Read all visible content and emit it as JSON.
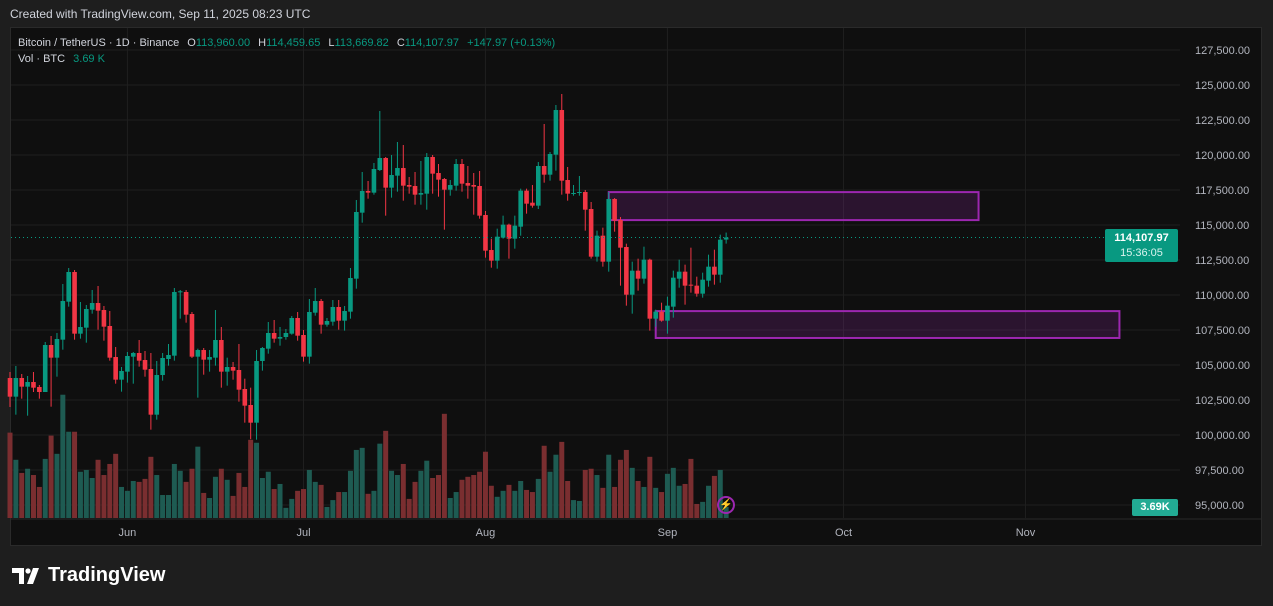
{
  "top_caption": "Created with TradingView.com, Sep 11, 2025 08:23 UTC",
  "legend": {
    "symbol": "Bitcoin / TetherUS · 1D · Binance",
    "o_label": "O",
    "o": "113,960.00",
    "h_label": "H",
    "h": "114,459.65",
    "l_label": "L",
    "l": "113,669.82",
    "c_label": "C",
    "c": "114,107.97",
    "change": "+147.97 (+0.13%)",
    "vol_label": "Vol · BTC",
    "vol": "3.69 K"
  },
  "last_price": {
    "price": "114,107.97",
    "countdown": "15:36:05",
    "value": 114107.97
  },
  "volume_label": "3.69K",
  "logo_text": "TradingView",
  "colors": {
    "up": "#089981",
    "down": "#f23645",
    "vol_up": "#1e5b52",
    "vol_down": "#7a2e30",
    "zone": "#9c27b0",
    "background": "#0f0f0f"
  },
  "icons": {
    "alert": "lightning-bolt-icon",
    "logo": "tradingview-logo-icon"
  },
  "chart_data": {
    "type": "candlestick",
    "title": "Bitcoin / TetherUS · 1D · Binance",
    "interval": "1D",
    "ylim": [
      95000,
      128000
    ],
    "y_ticks": [
      {
        "value": 127500,
        "label": "127,500.00"
      },
      {
        "value": 125000,
        "label": "125,000.00"
      },
      {
        "value": 122500,
        "label": "122,500.00"
      },
      {
        "value": 120000,
        "label": "120,000.00"
      },
      {
        "value": 117500,
        "label": "117,500.00"
      },
      {
        "value": 115000,
        "label": "115,000.00"
      },
      {
        "value": 112500,
        "label": "112,500.00"
      },
      {
        "value": 110000,
        "label": "110,000.00"
      },
      {
        "value": 107500,
        "label": "107,500.00"
      },
      {
        "value": 105000,
        "label": "105,000.00"
      },
      {
        "value": 102500,
        "label": "102,500.00"
      },
      {
        "value": 100000,
        "label": "100,000.00"
      },
      {
        "value": 97500,
        "label": "97,500.00"
      },
      {
        "value": 95000,
        "label": "95,000.00"
      }
    ],
    "x_ticks": [
      {
        "date": "2025-06-01",
        "label": "Jun"
      },
      {
        "date": "2025-07-01",
        "label": "Jul"
      },
      {
        "date": "2025-08-01",
        "label": "Aug"
      },
      {
        "date": "2025-09-01",
        "label": "Sep"
      },
      {
        "date": "2025-10-01",
        "label": "Oct"
      },
      {
        "date": "2025-11-01",
        "label": "Nov"
      }
    ],
    "grid": true,
    "columns": [
      "date",
      "open",
      "high",
      "low",
      "close",
      "volume_k_btc"
    ],
    "candles": [
      [
        "2025-05-12",
        104071,
        104500,
        102000,
        102738,
        28.6
      ],
      [
        "2025-05-13",
        102738,
        104928,
        101452,
        104071,
        19.5
      ],
      [
        "2025-05-14",
        104071,
        104357,
        102595,
        103452,
        15.1
      ],
      [
        "2025-05-15",
        103452,
        104214,
        101380,
        103785,
        16.5
      ],
      [
        "2025-05-16",
        103785,
        104500,
        103071,
        103380,
        14.4
      ],
      [
        "2025-05-17",
        103428,
        103571,
        102595,
        103071,
        10.4
      ],
      [
        "2025-05-18",
        103071,
        106643,
        103071,
        106428,
        19.8
      ],
      [
        "2025-05-19",
        106428,
        107071,
        102023,
        105524,
        27.6
      ],
      [
        "2025-05-20",
        105524,
        107285,
        104166,
        106857,
        21.5
      ],
      [
        "2025-05-21",
        106810,
        110785,
        106095,
        109571,
        41.3
      ],
      [
        "2025-05-22",
        109524,
        111928,
        109166,
        111643,
        28.9
      ],
      [
        "2025-05-23",
        111643,
        111785,
        106810,
        107238,
        28.9
      ],
      [
        "2025-05-24",
        107238,
        109500,
        106881,
        107714,
        15.5
      ],
      [
        "2025-05-25",
        107666,
        109285,
        106595,
        109000,
        16.1
      ],
      [
        "2025-05-26",
        108952,
        110357,
        108666,
        109428,
        13.4
      ],
      [
        "2025-05-27",
        109428,
        110643,
        107523,
        108881,
        19.5
      ],
      [
        "2025-05-28",
        108928,
        109214,
        106738,
        107738,
        14.4
      ],
      [
        "2025-05-29",
        107786,
        108857,
        105309,
        105524,
        18.1
      ],
      [
        "2025-05-30",
        105571,
        106285,
        103666,
        103952,
        21.5
      ],
      [
        "2025-05-31",
        103952,
        104857,
        103095,
        104571,
        10.4
      ],
      [
        "2025-06-01",
        104524,
        105928,
        103738,
        105643,
        9.1
      ],
      [
        "2025-06-02",
        105595,
        105928,
        103666,
        105857,
        12.4
      ],
      [
        "2025-06-03",
        105857,
        106786,
        104881,
        105309,
        12.1
      ],
      [
        "2025-06-04",
        105357,
        106000,
        104166,
        104666,
        13.1
      ],
      [
        "2025-06-05",
        104714,
        105857,
        100381,
        101452,
        20.5
      ],
      [
        "2025-06-06",
        101452,
        105286,
        101095,
        104286,
        14.4
      ],
      [
        "2025-06-07",
        104286,
        105857,
        103881,
        105500,
        7.7
      ],
      [
        "2025-06-08",
        105429,
        106500,
        104952,
        105714,
        7.7
      ],
      [
        "2025-06-09",
        105666,
        110500,
        105309,
        110214,
        18.1
      ],
      [
        "2025-06-10",
        110214,
        110357,
        108310,
        110262,
        15.8
      ],
      [
        "2025-06-11",
        110214,
        110357,
        108024,
        108595,
        12.1
      ],
      [
        "2025-06-12",
        108643,
        108786,
        105500,
        105595,
        16.5
      ],
      [
        "2025-06-13",
        105595,
        106166,
        102666,
        106071,
        23.9
      ],
      [
        "2025-06-14",
        106071,
        106214,
        104309,
        105381,
        8.4
      ],
      [
        "2025-06-15",
        105381,
        106071,
        104524,
        105571,
        6.7
      ],
      [
        "2025-06-16",
        105524,
        108928,
        104952,
        106786,
        13.8
      ],
      [
        "2025-06-17",
        106786,
        107714,
        103381,
        104524,
        16.5
      ],
      [
        "2025-06-18",
        104524,
        105524,
        103524,
        104857,
        12.8
      ],
      [
        "2025-06-19",
        104857,
        105214,
        103952,
        104595,
        7.4
      ],
      [
        "2025-06-20",
        104643,
        106500,
        102381,
        103238,
        15.1
      ],
      [
        "2025-06-21",
        103286,
        104024,
        100880,
        102095,
        10.4
      ],
      [
        "2025-06-22",
        102143,
        103381,
        99700,
        100880,
        26.2
      ],
      [
        "2025-06-23",
        100880,
        106071,
        99666,
        105286,
        25.2
      ],
      [
        "2025-06-24",
        105286,
        106286,
        104595,
        106214,
        13.4
      ],
      [
        "2025-06-25",
        106166,
        108071,
        105809,
        107286,
        15.5
      ],
      [
        "2025-06-26",
        107286,
        108214,
        106595,
        106881,
        9.7
      ],
      [
        "2025-06-27",
        106881,
        107714,
        106380,
        107000,
        11.4
      ],
      [
        "2025-06-28",
        107000,
        107571,
        106810,
        107286,
        3.4
      ],
      [
        "2025-06-29",
        107238,
        108500,
        107166,
        108357,
        6.4
      ],
      [
        "2025-06-30",
        108357,
        108786,
        106738,
        107095,
        9.1
      ],
      [
        "2025-07-01",
        107143,
        107500,
        105238,
        105595,
        9.7
      ],
      [
        "2025-07-02",
        105595,
        109714,
        105095,
        108786,
        16.1
      ],
      [
        "2025-07-03",
        108738,
        110500,
        108524,
        109571,
        12.1
      ],
      [
        "2025-07-04",
        109571,
        109714,
        107238,
        107881,
        11.1
      ],
      [
        "2025-07-05",
        107881,
        108357,
        107738,
        108143,
        3.7
      ],
      [
        "2025-07-06",
        108095,
        109643,
        107809,
        109143,
        6.0
      ],
      [
        "2025-07-07",
        109143,
        109643,
        107524,
        108166,
        8.7
      ],
      [
        "2025-07-08",
        108166,
        109214,
        107452,
        108857,
        8.7
      ],
      [
        "2025-07-09",
        108810,
        111928,
        108310,
        111214,
        15.8
      ],
      [
        "2025-07-10",
        111167,
        116786,
        110452,
        115928,
        22.8
      ],
      [
        "2025-07-11",
        115881,
        118786,
        115167,
        117429,
        23.5
      ],
      [
        "2025-07-12",
        117429,
        118143,
        116881,
        117310,
        8.1
      ],
      [
        "2025-07-13",
        117310,
        119429,
        117167,
        119000,
        9.1
      ],
      [
        "2025-07-14",
        118929,
        123143,
        118857,
        119786,
        24.9
      ],
      [
        "2025-07-15",
        119786,
        119857,
        115667,
        117667,
        29.2
      ],
      [
        "2025-07-16",
        117667,
        120000,
        116952,
        118571,
        15.8
      ],
      [
        "2025-07-17",
        118524,
        120929,
        117381,
        119071,
        14.4
      ],
      [
        "2025-07-18",
        119071,
        120714,
        116738,
        117810,
        18.1
      ],
      [
        "2025-07-19",
        117857,
        118429,
        117238,
        117738,
        6.4
      ],
      [
        "2025-07-20",
        117786,
        118786,
        116452,
        117167,
        12.1
      ],
      [
        "2025-07-21",
        117167,
        119571,
        116452,
        117286,
        15.8
      ],
      [
        "2025-07-22",
        117238,
        120143,
        116095,
        119857,
        19.2
      ],
      [
        "2025-07-23",
        119857,
        120000,
        117238,
        118667,
        13.4
      ],
      [
        "2025-07-24",
        118714,
        119357,
        117024,
        118238,
        14.4
      ],
      [
        "2025-07-25",
        118286,
        118357,
        114667,
        117524,
        34.9
      ],
      [
        "2025-07-26",
        117524,
        118214,
        117095,
        117857,
        6.7
      ],
      [
        "2025-07-27",
        117810,
        119714,
        117452,
        119357,
        8.7
      ],
      [
        "2025-07-28",
        119357,
        119714,
        117381,
        117952,
        12.8
      ],
      [
        "2025-07-29",
        118000,
        119214,
        116881,
        117810,
        13.8
      ],
      [
        "2025-07-30",
        117857,
        118714,
        115738,
        117738,
        14.4
      ],
      [
        "2025-07-31",
        117786,
        118857,
        115452,
        115667,
        15.5
      ],
      [
        "2025-08-01",
        115714,
        116000,
        112667,
        113167,
        22.2
      ],
      [
        "2025-08-02",
        113214,
        114024,
        111952,
        112452,
        10.8
      ],
      [
        "2025-08-03",
        112452,
        114738,
        111881,
        114167,
        7.1
      ],
      [
        "2025-08-04",
        114095,
        115667,
        114024,
        115024,
        9.1
      ],
      [
        "2025-08-05",
        115024,
        115095,
        112595,
        114024,
        11.1
      ],
      [
        "2025-08-06",
        114024,
        115667,
        113310,
        114952,
        9.1
      ],
      [
        "2025-08-07",
        114881,
        117595,
        114238,
        117452,
        12.4
      ],
      [
        "2025-08-08",
        117452,
        117595,
        115810,
        116524,
        9.4
      ],
      [
        "2025-08-09",
        116595,
        117857,
        116238,
        116381,
        8.7
      ],
      [
        "2025-08-10",
        116381,
        119500,
        116143,
        119214,
        13.1
      ],
      [
        "2025-08-11",
        119214,
        122214,
        118024,
        118595,
        24.2
      ],
      [
        "2025-08-12",
        118595,
        120214,
        118167,
        120071,
        15.5
      ],
      [
        "2025-08-13",
        120024,
        123571,
        118881,
        123214,
        21.2
      ],
      [
        "2025-08-14",
        123214,
        124357,
        117167,
        118167,
        25.5
      ],
      [
        "2025-08-15",
        118214,
        119143,
        116738,
        117238,
        12.4
      ],
      [
        "2025-08-16",
        117238,
        117857,
        117095,
        117286,
        6.0
      ],
      [
        "2025-08-17",
        117310,
        118500,
        117095,
        117357,
        5.7
      ],
      [
        "2025-08-18",
        117357,
        117500,
        114595,
        116095,
        16.1
      ],
      [
        "2025-08-19",
        116143,
        116643,
        112600,
        112738,
        16.5
      ],
      [
        "2025-08-20",
        112738,
        114595,
        112381,
        114238,
        14.4
      ],
      [
        "2025-08-21",
        114238,
        114810,
        112024,
        112381,
        10.1
      ],
      [
        "2025-08-22",
        112381,
        117357,
        111667,
        116857,
        21.2
      ],
      [
        "2025-08-23",
        116857,
        116929,
        114524,
        115310,
        10.4
      ],
      [
        "2025-08-24",
        115357,
        115571,
        110667,
        113381,
        19.5
      ],
      [
        "2025-08-25",
        113429,
        113667,
        109238,
        110024,
        22.8
      ],
      [
        "2025-08-26",
        110024,
        112381,
        108667,
        111738,
        16.8
      ],
      [
        "2025-08-27",
        111738,
        112595,
        110310,
        111167,
        12.4
      ],
      [
        "2025-08-28",
        111167,
        113452,
        110810,
        112524,
        10.4
      ],
      [
        "2025-08-29",
        112524,
        112595,
        107452,
        108310,
        20.5
      ],
      [
        "2025-08-30",
        108310,
        108952,
        107738,
        108810,
        10.1
      ],
      [
        "2025-08-31",
        108810,
        109452,
        108095,
        108167,
        8.7
      ],
      [
        "2025-09-01",
        108167,
        109881,
        107238,
        109238,
        14.8
      ],
      [
        "2025-09-02",
        109167,
        111738,
        108381,
        111238,
        16.8
      ],
      [
        "2025-09-03",
        111167,
        112524,
        110524,
        111667,
        10.8
      ],
      [
        "2025-09-04",
        111667,
        112167,
        109310,
        110667,
        11.4
      ],
      [
        "2025-09-05",
        110738,
        113381,
        110167,
        110667,
        19.8
      ],
      [
        "2025-09-06",
        110667,
        111310,
        109881,
        110095,
        4.7
      ],
      [
        "2025-09-07",
        110095,
        111595,
        109810,
        111095,
        5.4
      ],
      [
        "2025-09-08",
        111024,
        112881,
        110595,
        112024,
        10.8
      ],
      [
        "2025-09-09",
        112024,
        113238,
        110738,
        111452,
        14.1
      ],
      [
        "2025-09-10",
        111452,
        114310,
        110881,
        113952,
        16.1
      ],
      [
        "2025-09-11",
        113960,
        114459.65,
        113669.82,
        114107.97,
        3.69
      ]
    ],
    "zones": [
      {
        "name": "upper-zone",
        "start": "2025-08-22",
        "end": "2025-10-24",
        "top": 117350,
        "bottom": 115350
      },
      {
        "name": "lower-zone",
        "start": "2025-08-30",
        "end": "2025-11-17",
        "top": 108850,
        "bottom": 106930
      }
    ]
  }
}
